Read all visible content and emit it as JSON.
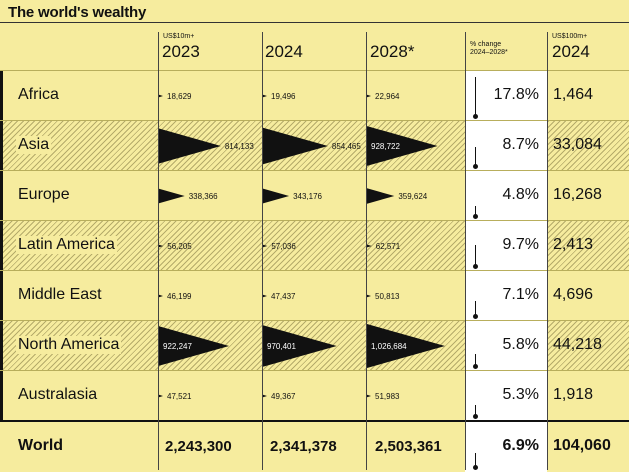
{
  "title": "The world's wealthy",
  "columns": {
    "unit_a": "US$10m+",
    "years_a": [
      "2023",
      "2024",
      "2028*"
    ],
    "pct_note_line1": "% change",
    "pct_note_line2": "2024–2028*",
    "unit_b": "US$100m+",
    "year_b": "2024"
  },
  "colors": {
    "background": "#f6ec9e",
    "triangle": "#111111",
    "pct_cell": "#ffffff"
  },
  "chart_data": {
    "type": "table",
    "title": "The world's wealthy",
    "columns": [
      "2023",
      "2024",
      "2028*",
      "% change 2024–2028*",
      "2024"
    ],
    "rows": [
      {
        "region": "Africa",
        "v2023": "18,629",
        "v2024": "19,496",
        "v2028": "22,964",
        "pct": "17.8%",
        "b2024": "1,464",
        "n2023": 18629,
        "n2024": 19496,
        "n2028": 22964,
        "pct_value": 17.8
      },
      {
        "region": "Asia",
        "v2023": "814,133",
        "v2024": "854,465",
        "v2028": "928,722",
        "pct": "8.7%",
        "b2024": "33,084",
        "n2023": 814133,
        "n2024": 854465,
        "n2028": 928722,
        "pct_value": 8.7
      },
      {
        "region": "Europe",
        "v2023": "338,366",
        "v2024": "343,176",
        "v2028": "359,624",
        "pct": "4.8%",
        "b2024": "16,268",
        "n2023": 338366,
        "n2024": 343176,
        "n2028": 359624,
        "pct_value": 4.8
      },
      {
        "region": "Latin America",
        "v2023": "56,205",
        "v2024": "57,036",
        "v2028": "62,571",
        "pct": "9.7%",
        "b2024": "2,413",
        "n2023": 56205,
        "n2024": 57036,
        "n2028": 62571,
        "pct_value": 9.7
      },
      {
        "region": "Middle East",
        "v2023": "46,199",
        "v2024": "47,437",
        "v2028": "50,813",
        "pct": "7.1%",
        "b2024": "4,696",
        "n2023": 46199,
        "n2024": 47437,
        "n2028": 50813,
        "pct_value": 7.1
      },
      {
        "region": "North America",
        "v2023": "922,247",
        "v2024": "970,401",
        "v2028": "1,026,684",
        "pct": "5.8%",
        "b2024": "44,218",
        "n2023": 922247,
        "n2024": 970401,
        "n2028": 1026684,
        "pct_value": 5.8
      },
      {
        "region": "Australasia",
        "v2023": "47,521",
        "v2024": "49,367",
        "v2028": "51,983",
        "pct": "5.3%",
        "b2024": "1,918",
        "n2023": 47521,
        "n2024": 49367,
        "n2028": 51983,
        "pct_value": 5.3
      }
    ],
    "total": {
      "region": "World",
      "v2023": "2,243,300",
      "v2024": "2,341,378",
      "v2028": "2,503,361",
      "pct": "6.9%",
      "b2024": "104,060",
      "pct_value": 6.9
    }
  }
}
